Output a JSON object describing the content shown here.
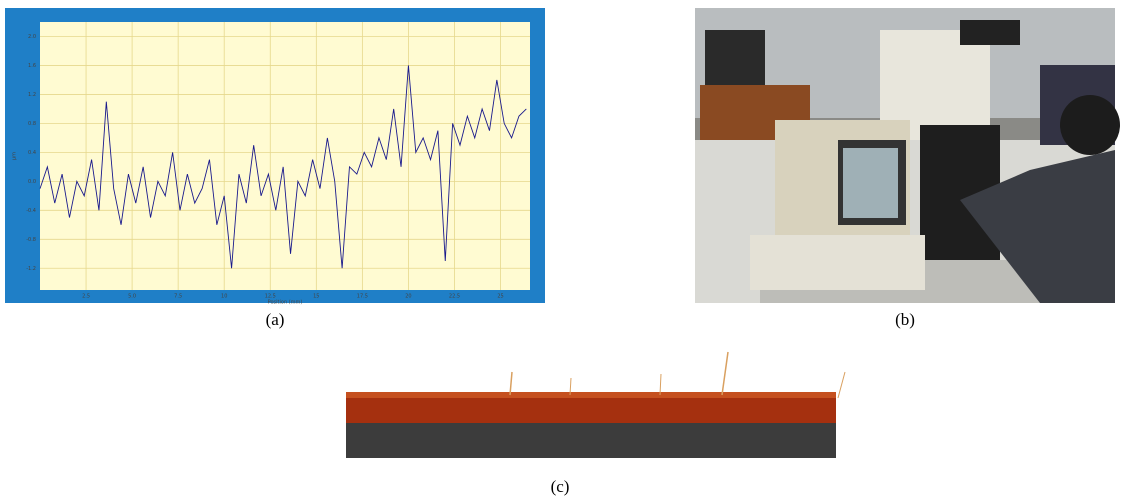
{
  "chart_data": {
    "type": "line",
    "x_label": "Position (mm)",
    "y_label": "µm",
    "x": [
      0,
      0.4,
      0.8,
      1.2,
      1.6,
      2.0,
      2.4,
      2.8,
      3.2,
      3.6,
      4.0,
      4.4,
      4.8,
      5.2,
      5.6,
      6.0,
      6.4,
      6.8,
      7.2,
      7.6,
      8.0,
      8.4,
      8.8,
      9.2,
      9.6,
      10.0,
      10.4,
      10.8,
      11.2,
      11.6,
      12.0,
      12.4,
      12.8,
      13.2,
      13.6,
      14.0,
      14.4,
      14.8,
      15.2,
      15.6,
      16.0,
      16.4,
      16.8,
      17.2,
      17.6,
      18.0,
      18.4,
      18.8,
      19.2,
      19.6,
      20.0,
      20.4,
      20.8,
      21.2,
      21.6,
      22.0,
      22.4,
      22.8,
      23.2,
      23.6,
      24.0,
      24.4,
      24.8,
      25.2,
      25.6,
      26.0,
      26.4
    ],
    "series": [
      {
        "color": "#1a1a8c",
        "values": [
          -0.1,
          0.2,
          -0.3,
          0.1,
          -0.5,
          0.0,
          -0.2,
          0.3,
          -0.4,
          1.1,
          -0.1,
          -0.6,
          0.1,
          -0.3,
          0.2,
          -0.5,
          0.0,
          -0.2,
          0.4,
          -0.4,
          0.1,
          -0.3,
          -0.1,
          0.3,
          -0.6,
          -0.2,
          -1.2,
          0.1,
          -0.3,
          0.5,
          -0.2,
          0.1,
          -0.4,
          0.2,
          -1.0,
          0.0,
          -0.2,
          0.3,
          -0.1,
          0.6,
          0.0,
          -1.2,
          0.2,
          0.1,
          0.4,
          0.2,
          0.6,
          0.3,
          1.0,
          0.2,
          1.6,
          0.4,
          0.6,
          0.3,
          0.7,
          -1.1,
          0.8,
          0.5,
          0.9,
          0.6,
          1.0,
          0.7,
          1.4,
          0.8,
          0.6,
          0.9,
          1.0
        ]
      }
    ],
    "xlim": [
      0,
      26.6
    ],
    "ylim": [
      -1.5,
      2.2
    ],
    "xticks": [
      2.5,
      {
        "value": 5,
        "label": "5.0"
      },
      7.5,
      10,
      12.5,
      15,
      17.5,
      20,
      22.5,
      25
    ],
    "yticks": [
      {
        "value": 2,
        "label": "2.0"
      },
      1.6,
      1.2,
      0.8,
      0.4,
      {
        "value": 0,
        "label": "0.0"
      },
      -0.4,
      -0.8,
      -1.2
    ],
    "grid": true
  },
  "captions": {
    "a": "(a)",
    "b": "(b)",
    "c": "(c)"
  }
}
